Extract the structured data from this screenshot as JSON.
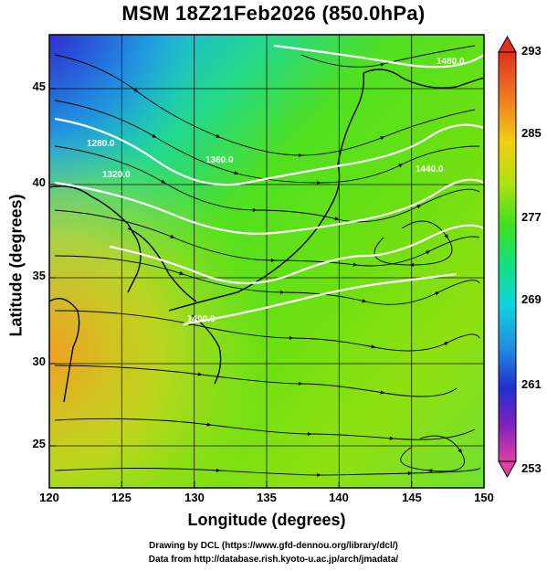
{
  "title": "MSM 18Z21Feb2026 (850.0hPa)",
  "x_axis": {
    "label": "Longitude (degrees)",
    "ticks": [
      "120",
      "125",
      "130",
      "135",
      "140",
      "145",
      "150"
    ]
  },
  "y_axis": {
    "label": "Latitude  (degrees)",
    "ticks": [
      "25",
      "30",
      "35",
      "40",
      "45"
    ]
  },
  "colorbar": {
    "ticks": [
      "293",
      "285",
      "277",
      "269",
      "261",
      "253"
    ],
    "colors": [
      "#e0407a",
      "#8020c0",
      "#2030d0",
      "#2090e0",
      "#10d0e0",
      "#10e080",
      "#60e010",
      "#b0e010",
      "#f0d010",
      "#f08020",
      "#e03020"
    ]
  },
  "contour_labels": [
    "1280.0",
    "1320.0",
    "1360.0",
    "1400.0",
    "1440.0",
    "1480.0"
  ],
  "credits": {
    "line1": "Drawing by DCL (https://www.gfd-dennou.org/library/dcl/)",
    "line2": "Data from http://database.rish.kyoto-u.ac.jp/arch/jmadata/"
  },
  "map_data": {
    "type": "streamline-temperature",
    "lon_range": [
      120,
      150
    ],
    "lat_range": [
      22.5,
      47.5
    ],
    "temperature_range_K": [
      253,
      293
    ],
    "legend": "right colorbar",
    "grid": true
  }
}
